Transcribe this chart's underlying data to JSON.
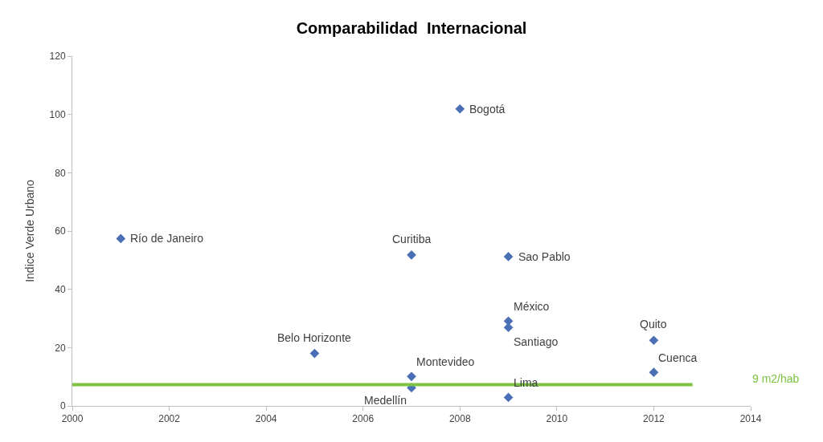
{
  "chart_data": {
    "type": "scatter",
    "title": "Comparabilidad  Internacional",
    "ylabel": "Indice Verde Urbano",
    "x": [
      2001,
      2008,
      2007,
      2009,
      2009,
      2009,
      2012,
      2005,
      2012,
      2007,
      2007,
      2009
    ],
    "series": [
      {
        "color": "#4a6fb5",
        "values": [
          57.4,
          101.9,
          51.8,
          51.2,
          29.1,
          26.9,
          22.5,
          18.0,
          11.5,
          10.1,
          6.2,
          2.9
        ]
      }
    ],
    "annotations": [
      {
        "text": "Río de Janeiro",
        "x": 2001,
        "y": 57.4
      },
      {
        "text": "Bogotá",
        "x": 2008,
        "y": 101.9
      },
      {
        "text": "Curitiba",
        "x": 2007,
        "y": 51.8
      },
      {
        "text": "Sao Pablo",
        "x": 2009,
        "y": 51.2
      },
      {
        "text": "México",
        "x": 2009,
        "y": 29.1
      },
      {
        "text": "Santiago",
        "x": 2009,
        "y": 26.9
      },
      {
        "text": "Quito",
        "x": 2012,
        "y": 22.5
      },
      {
        "text": "Belo Horizonte",
        "x": 2005,
        "y": 18.0
      },
      {
        "text": "Cuenca",
        "x": 2012,
        "y": 11.5
      },
      {
        "text": "Montevideo",
        "x": 2007,
        "y": 10.1
      },
      {
        "text": "Medellín",
        "x": 2007,
        "y": 6.2
      },
      {
        "text": "Lima",
        "x": 2009,
        "y": 2.9
      }
    ],
    "ref_lines": [
      {
        "axis": "y",
        "value": 7.3,
        "label": "9 m2/hab",
        "color": "#7dc242"
      }
    ],
    "xlim": [
      2000,
      2014
    ],
    "xticks": [
      2000,
      2002,
      2004,
      2006,
      2008,
      2010,
      2012,
      2014
    ],
    "ylim": [
      0,
      120
    ],
    "yticks": [
      0,
      20,
      40,
      60,
      80,
      100,
      120
    ],
    "marker": "diamond",
    "legend": false
  }
}
